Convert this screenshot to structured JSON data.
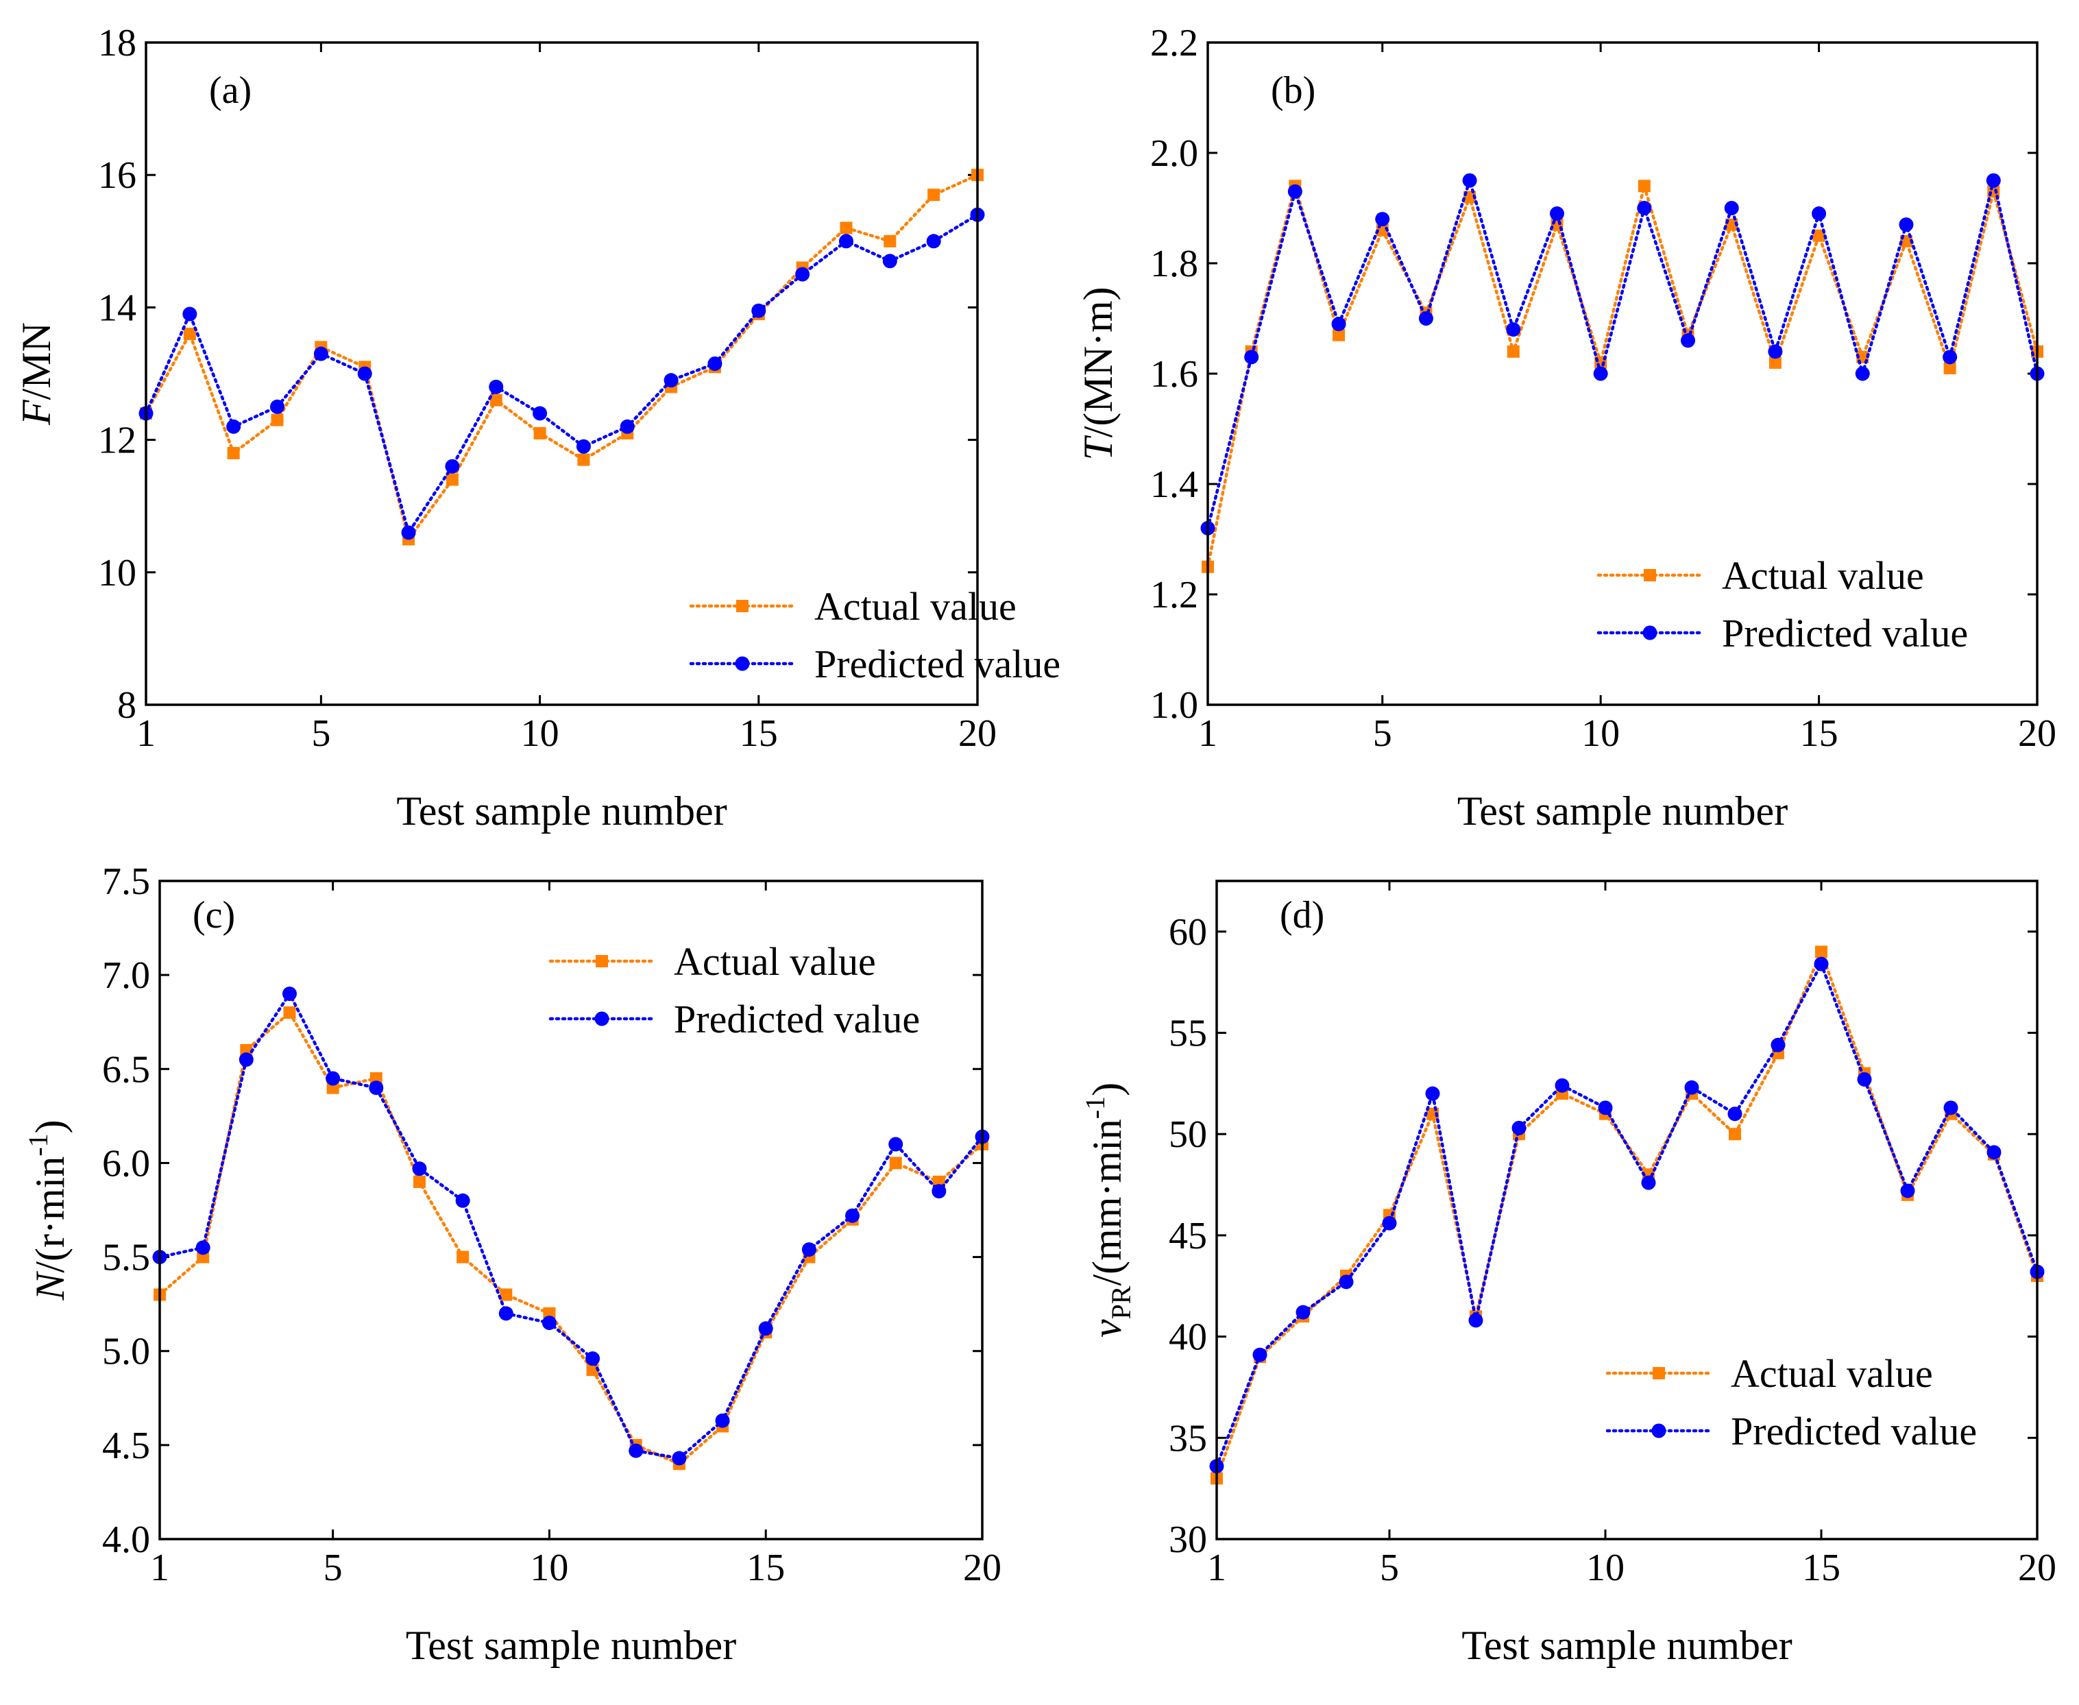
{
  "colors": {
    "actual": "#ff8000",
    "predicted": "#0000ff",
    "axis": "#000000"
  },
  "chart_data": [
    {
      "type": "line",
      "panel_label": "(a)",
      "ylabel_italic": "F",
      "ylabel_rest": "/MN",
      "ylabel_sup": "",
      "ylabel_sub": "",
      "xlabel": "Test sample number",
      "xlim": [
        1,
        20
      ],
      "ylim": [
        8,
        18
      ],
      "xticks": [
        1,
        5,
        10,
        15,
        20
      ],
      "yticks": [
        "8",
        "10",
        "12",
        "14",
        "16",
        "18"
      ],
      "legend_position": "lower-right",
      "series": [
        {
          "name": "Actual value",
          "marker": "square",
          "x": [
            1,
            2,
            3,
            4,
            5,
            6,
            7,
            8,
            9,
            10,
            11,
            12,
            13,
            14,
            15,
            16,
            17,
            18,
            19,
            20
          ],
          "values": [
            12.4,
            13.6,
            11.8,
            12.3,
            13.4,
            13.1,
            10.5,
            11.4,
            12.6,
            12.1,
            11.7,
            12.1,
            12.8,
            13.1,
            13.9,
            14.6,
            15.2,
            15.0,
            15.7,
            16.0
          ]
        },
        {
          "name": "Predicted value",
          "marker": "circle",
          "x": [
            1,
            2,
            3,
            4,
            5,
            6,
            7,
            8,
            9,
            10,
            11,
            12,
            13,
            14,
            15,
            16,
            17,
            18,
            19,
            20
          ],
          "values": [
            12.4,
            13.9,
            12.2,
            12.5,
            13.3,
            13.0,
            10.6,
            11.6,
            12.8,
            12.4,
            11.9,
            12.2,
            12.9,
            13.15,
            13.95,
            14.5,
            15.0,
            14.7,
            15.0,
            15.4
          ]
        }
      ]
    },
    {
      "type": "line",
      "panel_label": "(b)",
      "ylabel_italic": "T",
      "ylabel_rest": "/(MN·m)",
      "ylabel_sup": "",
      "ylabel_sub": "",
      "xlabel": "Test sample number",
      "xlim": [
        1,
        20
      ],
      "ylim": [
        1.0,
        2.2
      ],
      "xticks": [
        1,
        5,
        10,
        15,
        20
      ],
      "yticks": [
        "1.0",
        "1.2",
        "1.4",
        "1.6",
        "1.8",
        "2.0",
        "2.2"
      ],
      "legend_position": "center-right",
      "series": [
        {
          "name": "Actual value",
          "marker": "square",
          "x": [
            1,
            2,
            3,
            4,
            5,
            6,
            7,
            8,
            9,
            10,
            11,
            12,
            13,
            14,
            15,
            16,
            17,
            18,
            19,
            20
          ],
          "values": [
            1.25,
            1.64,
            1.94,
            1.67,
            1.86,
            1.71,
            1.92,
            1.64,
            1.87,
            1.62,
            1.94,
            1.67,
            1.87,
            1.62,
            1.85,
            1.63,
            1.84,
            1.61,
            1.93,
            1.64
          ]
        },
        {
          "name": "Predicted value",
          "marker": "circle",
          "x": [
            1,
            2,
            3,
            4,
            5,
            6,
            7,
            8,
            9,
            10,
            11,
            12,
            13,
            14,
            15,
            16,
            17,
            18,
            19,
            20
          ],
          "values": [
            1.32,
            1.63,
            1.93,
            1.69,
            1.88,
            1.7,
            1.95,
            1.68,
            1.89,
            1.6,
            1.9,
            1.66,
            1.9,
            1.64,
            1.89,
            1.6,
            1.87,
            1.63,
            1.95,
            1.6
          ]
        }
      ]
    },
    {
      "type": "line",
      "panel_label": "(c)",
      "ylabel_italic": "N",
      "ylabel_rest": "/(r·min",
      "ylabel_sup": "-1",
      "ylabel_sub": "",
      "ylabel_tail": ")",
      "xlabel": "Test sample number",
      "xlim": [
        1,
        20
      ],
      "ylim": [
        4.0,
        7.5
      ],
      "xticks": [
        1,
        5,
        10,
        15,
        20
      ],
      "yticks": [
        "4.0",
        "4.5",
        "5.0",
        "5.5",
        "6.0",
        "6.5",
        "7.0",
        "7.5"
      ],
      "legend_position": "top-right",
      "series": [
        {
          "name": "Actual value",
          "marker": "square",
          "x": [
            1,
            2,
            3,
            4,
            5,
            6,
            7,
            8,
            9,
            10,
            11,
            12,
            13,
            14,
            15,
            16,
            17,
            18,
            19,
            20
          ],
          "values": [
            5.3,
            5.5,
            6.6,
            6.8,
            6.4,
            6.45,
            5.9,
            5.5,
            5.3,
            5.2,
            4.9,
            4.5,
            4.4,
            4.6,
            5.1,
            5.5,
            5.7,
            6.0,
            5.9,
            6.1
          ]
        },
        {
          "name": "Predicted value",
          "marker": "circle",
          "x": [
            1,
            2,
            3,
            4,
            5,
            6,
            7,
            8,
            9,
            10,
            11,
            12,
            13,
            14,
            15,
            16,
            17,
            18,
            19,
            20
          ],
          "values": [
            5.5,
            5.55,
            6.55,
            6.9,
            6.45,
            6.4,
            5.97,
            5.8,
            5.2,
            5.15,
            4.96,
            4.47,
            4.43,
            4.63,
            5.12,
            5.54,
            5.72,
            6.1,
            5.85,
            6.14
          ]
        }
      ]
    },
    {
      "type": "line",
      "panel_label": "(d)",
      "ylabel_italic": "v",
      "ylabel_rest": "/(mm·min",
      "ylabel_sup": "-1",
      "ylabel_sub": "PR",
      "ylabel_tail": ")",
      "xlabel": "Test sample number",
      "xlim": [
        1,
        20
      ],
      "ylim": [
        30,
        62.5
      ],
      "xticks": [
        1,
        5,
        10,
        15,
        20
      ],
      "yticks": [
        "30",
        "35",
        "40",
        "45",
        "50",
        "55",
        "60"
      ],
      "legend_position": "lower-right",
      "series": [
        {
          "name": "Actual value",
          "marker": "square",
          "x": [
            1,
            2,
            3,
            4,
            5,
            6,
            7,
            8,
            9,
            10,
            11,
            12,
            13,
            14,
            15,
            16,
            17,
            18,
            19,
            20
          ],
          "values": [
            33,
            39,
            41,
            43,
            46,
            51,
            41,
            50,
            52,
            51,
            48,
            52,
            50,
            54,
            59,
            53,
            47,
            51,
            49,
            43
          ]
        },
        {
          "name": "Predicted value",
          "marker": "circle",
          "x": [
            1,
            2,
            3,
            4,
            5,
            6,
            7,
            8,
            9,
            10,
            11,
            12,
            13,
            14,
            15,
            16,
            17,
            18,
            19,
            20
          ],
          "values": [
            33.6,
            39.1,
            41.2,
            42.7,
            45.6,
            52.0,
            40.8,
            50.3,
            52.4,
            51.3,
            47.6,
            52.3,
            51.0,
            54.4,
            58.4,
            52.7,
            47.2,
            51.3,
            49.1,
            43.2
          ]
        }
      ]
    }
  ]
}
